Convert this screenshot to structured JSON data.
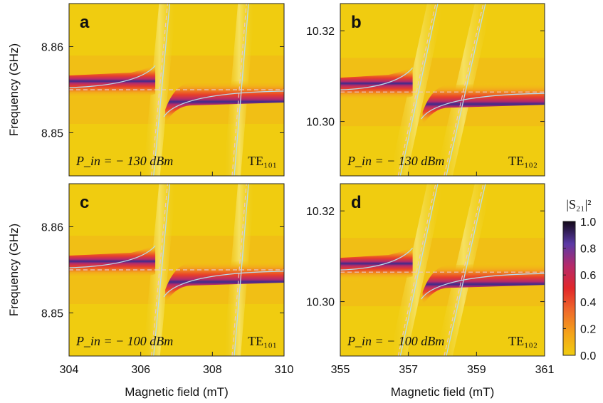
{
  "figure": {
    "colorbar": {
      "title": "|S₂₁|²",
      "ticks": [
        "1.0",
        "0.8",
        "0.6",
        "0.4",
        "0.2",
        "0.0"
      ],
      "range": [
        0,
        1
      ],
      "colormap": [
        "#f0cc10",
        "#f4a21a",
        "#ef6a2a",
        "#e2272a",
        "#b62a6a",
        "#5a3aa6",
        "#120818"
      ]
    },
    "colors": {
      "background": "#f0cc10",
      "hybrid_curve": "#b8dcec",
      "dashed_line": "#e8c8cc"
    }
  },
  "chart_data": [
    {
      "panel": "a",
      "type": "heatmap",
      "xlabel": "",
      "ylabel": "Frequency (GHz)",
      "xlim": [
        304,
        310
      ],
      "ylim": [
        8.845,
        8.865
      ],
      "xticks": [],
      "yticks": [
        "8.86",
        "8.85"
      ],
      "annotation_power": "P_in = − 130 dBm",
      "annotation_mode": "TE₁₀₁",
      "cavity_freq": 8.855,
      "kittel_lines": [
        {
          "x": [
            306.3,
            306.75
          ],
          "y": [
            8.845,
            8.865
          ]
        },
        {
          "x": [
            308.55,
            308.95
          ],
          "y": [
            8.845,
            8.865
          ]
        }
      ]
    },
    {
      "panel": "b",
      "type": "heatmap",
      "xlabel": "",
      "ylabel": "",
      "xlim": [
        355,
        361
      ],
      "ylim": [
        10.288,
        10.326
      ],
      "xticks": [],
      "yticks": [
        "10.32",
        "10.30"
      ],
      "annotation_power": "P_in = − 130 dBm",
      "annotation_mode": "TE₁₀₂",
      "cavity_freq": 10.3065,
      "kittel_lines": [
        {
          "x": [
            356.7,
            357.8
          ],
          "y": [
            10.288,
            10.326
          ]
        },
        {
          "x": [
            358.05,
            359.2
          ],
          "y": [
            10.288,
            10.326
          ]
        }
      ]
    },
    {
      "panel": "c",
      "type": "heatmap",
      "xlabel": "Magnetic field (mT)",
      "ylabel": "Frequency (GHz)",
      "xlim": [
        304,
        310
      ],
      "ylim": [
        8.845,
        8.865
      ],
      "xticks": [
        "304",
        "306",
        "308",
        "310"
      ],
      "yticks": [
        "8.86",
        "8.85"
      ],
      "annotation_power": "P_in = − 100 dBm",
      "annotation_mode": "TE₁₀₁",
      "cavity_freq": 8.855,
      "kittel_lines": [
        {
          "x": [
            306.3,
            306.75
          ],
          "y": [
            8.845,
            8.865
          ]
        },
        {
          "x": [
            308.55,
            308.95
          ],
          "y": [
            8.845,
            8.865
          ]
        }
      ]
    },
    {
      "panel": "d",
      "type": "heatmap",
      "xlabel": "Magnetic field (mT)",
      "ylabel": "",
      "xlim": [
        355,
        361
      ],
      "ylim": [
        10.288,
        10.326
      ],
      "xticks": [
        "355",
        "357",
        "359",
        "361"
      ],
      "yticks": [
        "10.32",
        "10.30"
      ],
      "annotation_power": "P_in = − 100 dBm",
      "annotation_mode": "TE₁₀₂",
      "cavity_freq": 10.3065,
      "kittel_lines": [
        {
          "x": [
            356.7,
            357.8
          ],
          "y": [
            10.288,
            10.326
          ]
        },
        {
          "x": [
            358.05,
            359.2
          ],
          "y": [
            10.288,
            10.326
          ]
        }
      ]
    }
  ]
}
